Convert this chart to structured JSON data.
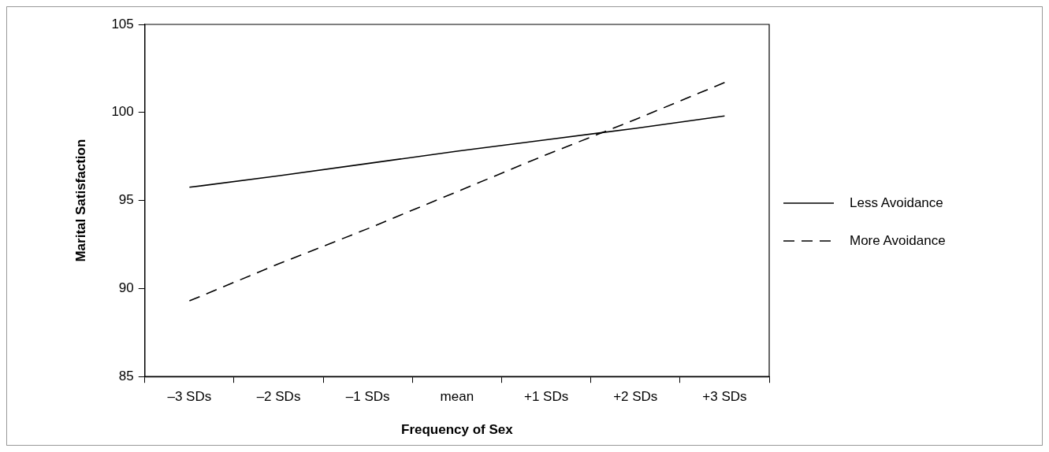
{
  "chart_data": {
    "type": "line",
    "xlabel": "Frequency of Sex",
    "ylabel": "Marital Satisfaction",
    "categories": [
      "–3 SDs",
      "–2 SDs",
      "–1 SDs",
      "mean",
      "+1 SDs",
      "+2 SDs",
      "+3 SDs"
    ],
    "series": [
      {
        "name": "Less Avoidance",
        "color": "#000000",
        "line_style": "solid",
        "values": [
          95.75,
          96.4,
          97.1,
          97.8,
          98.45,
          99.1,
          99.8
        ]
      },
      {
        "name": "More Avoidance",
        "color": "#000000",
        "line_style": "dashed",
        "values": [
          89.3,
          91.4,
          93.4,
          95.5,
          97.6,
          99.6,
          101.7
        ]
      }
    ],
    "ylim": [
      85,
      105
    ],
    "yticks": [
      85,
      90,
      95,
      100,
      105
    ],
    "grid": false,
    "marker": "none",
    "legend": "right"
  }
}
